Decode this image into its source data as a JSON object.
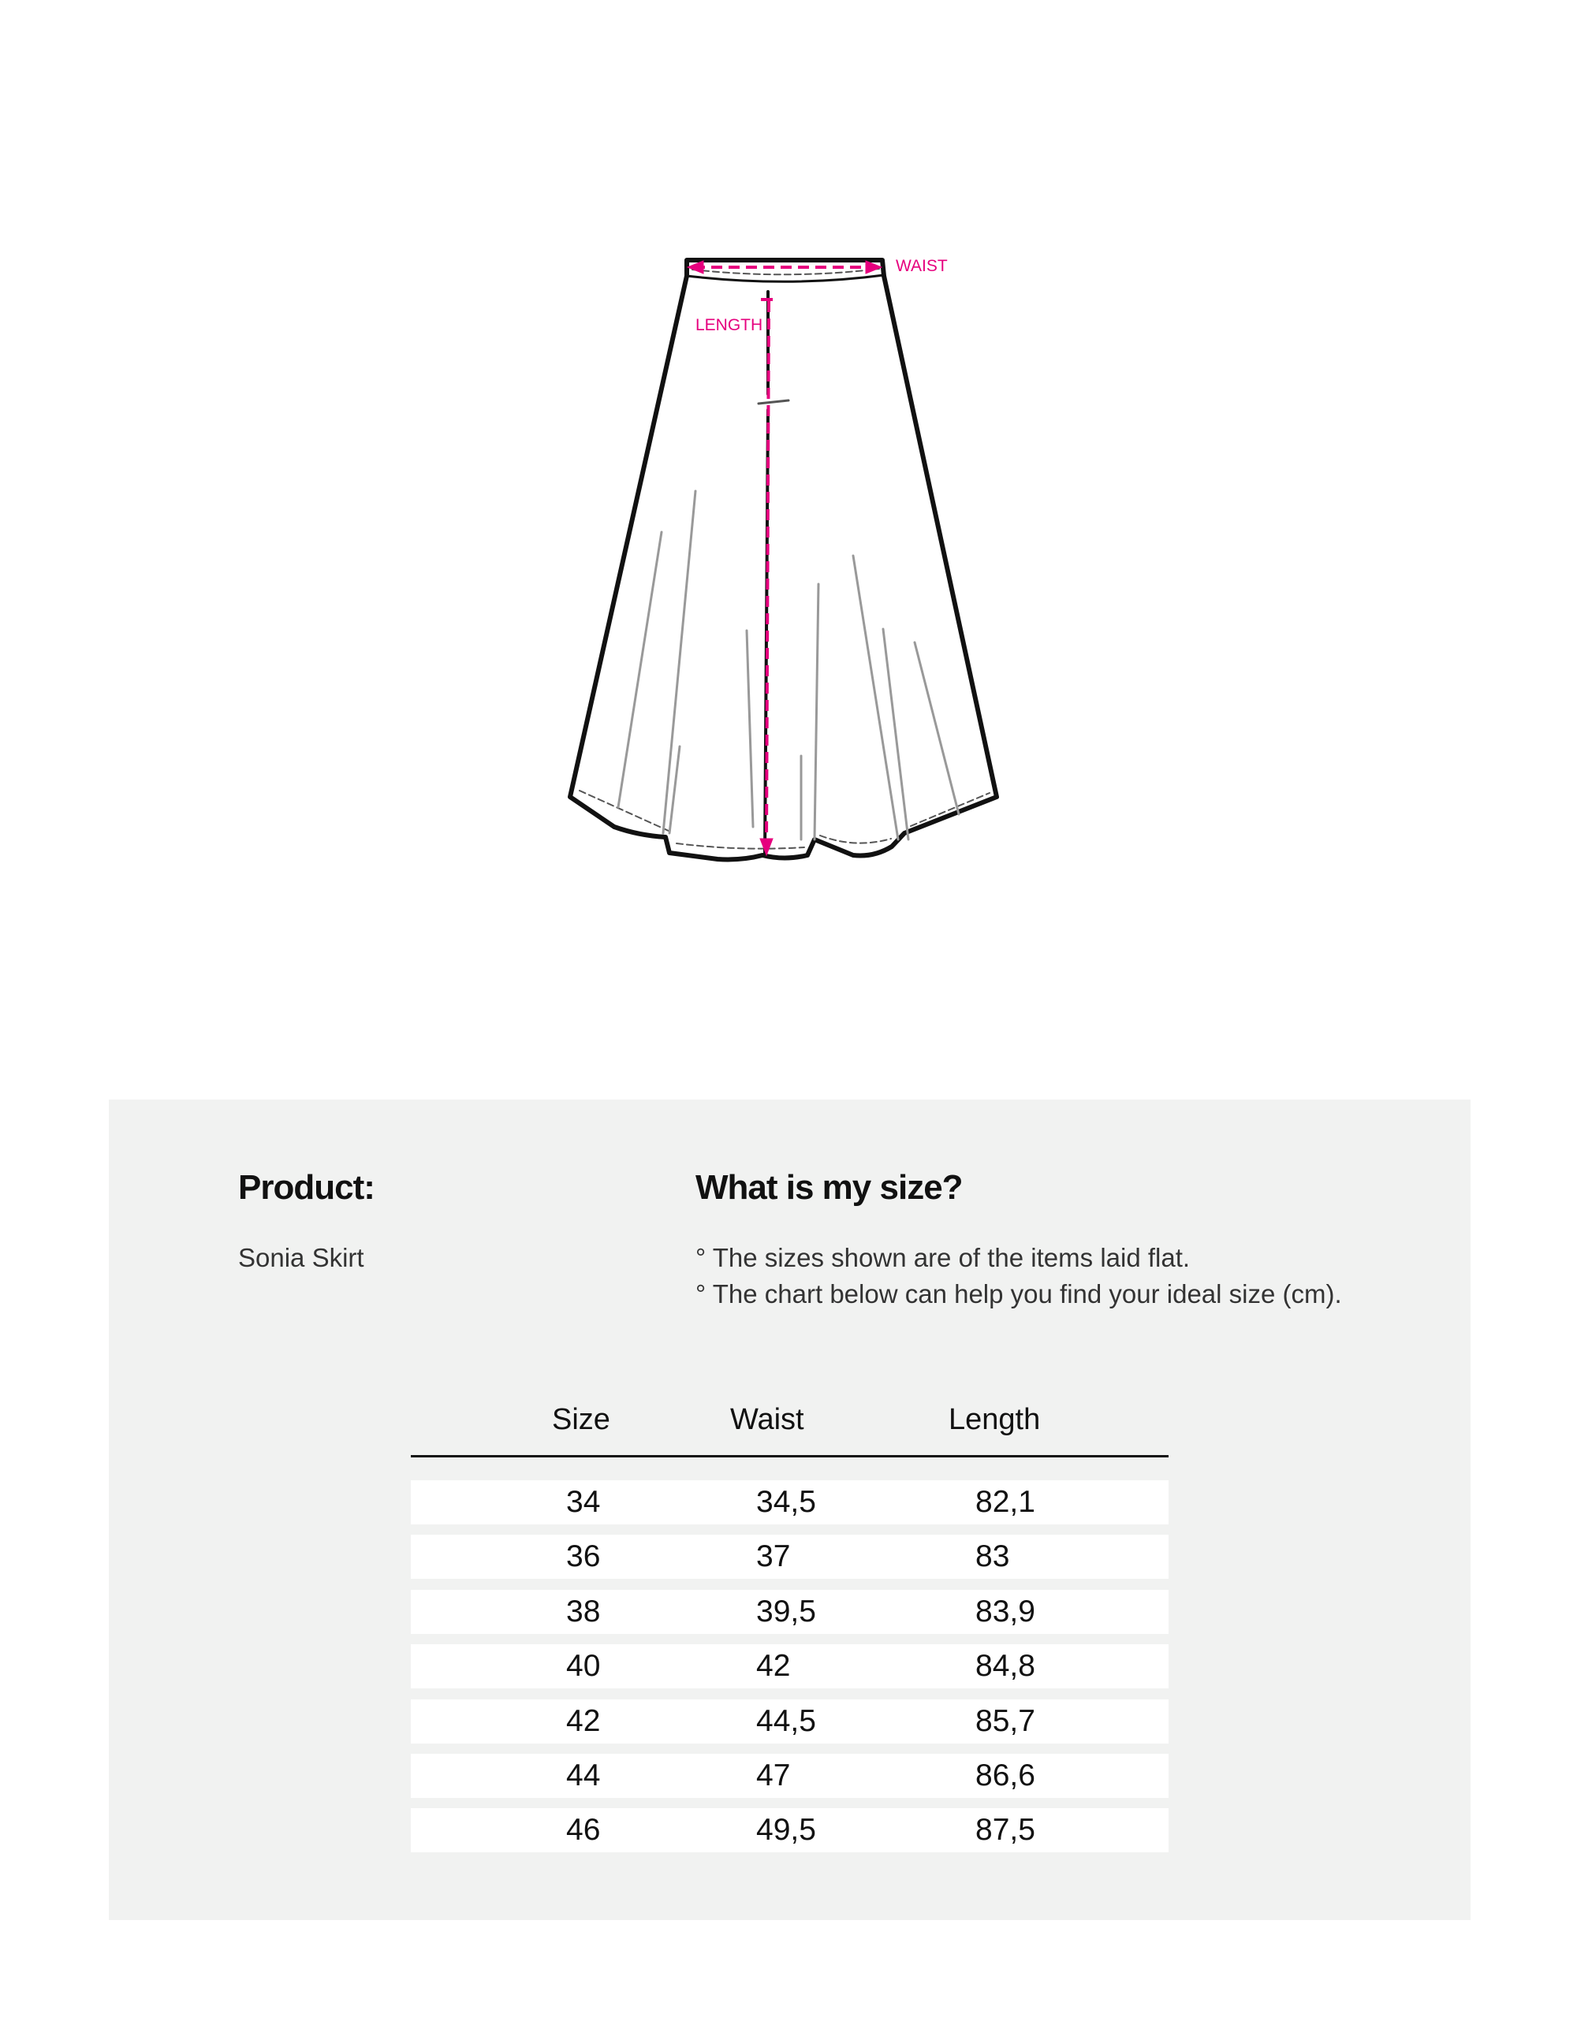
{
  "diagram": {
    "waist_label": "WAIST",
    "length_label": "LENGTH",
    "accent_color": "#e6007e"
  },
  "product": {
    "heading": "Product:",
    "name": "Sonia Skirt"
  },
  "size_help": {
    "heading": "What is my size?",
    "notes": [
      "° The sizes shown are of the items laid flat.",
      "° The chart below can help you find your ideal size (cm)."
    ]
  },
  "table": {
    "headers": [
      "Size",
      "Waist",
      "Length"
    ],
    "rows": [
      [
        "34",
        "34,5",
        "82,1"
      ],
      [
        "36",
        "37",
        "83"
      ],
      [
        "38",
        "39,5",
        "83,9"
      ],
      [
        "40",
        "42",
        "84,8"
      ],
      [
        "42",
        "44,5",
        "85,7"
      ],
      [
        "44",
        "47",
        "86,6"
      ],
      [
        "46",
        "49,5",
        "87,5"
      ]
    ]
  }
}
